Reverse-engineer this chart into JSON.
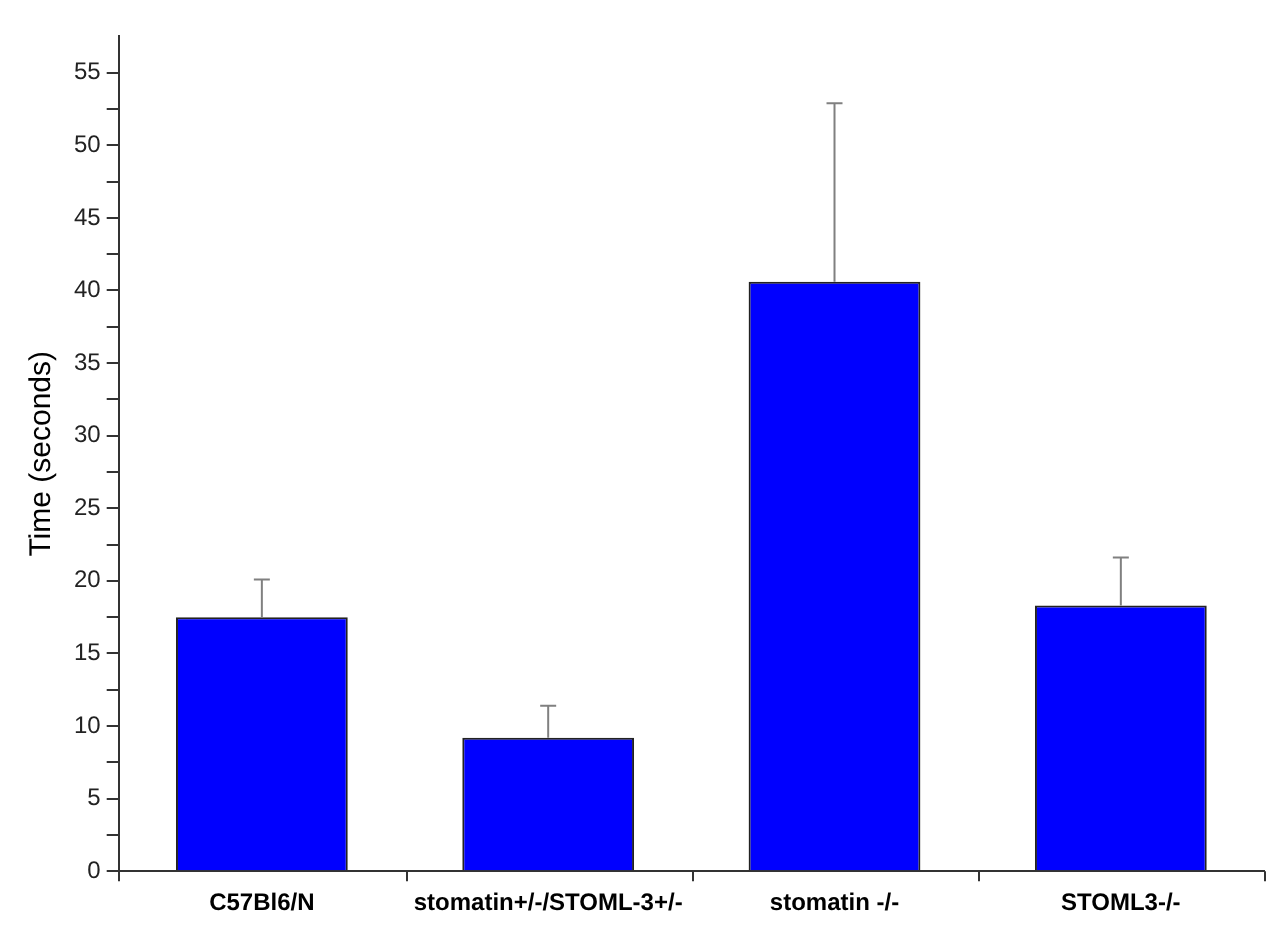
{
  "chart_data": {
    "type": "bar",
    "ylabel": "Time (seconds)",
    "categories": [
      "C57Bl6/N",
      "stomatin+/-/STOML-3+/-",
      "stomatin -/-",
      "STOML3-/-"
    ],
    "values": [
      17.5,
      9.2,
      40.6,
      18.3
    ],
    "errors": [
      [
        17.5,
        20.1
      ],
      [
        9.2,
        11.4
      ],
      [
        40.6,
        52.9
      ],
      [
        18.3,
        21.6
      ]
    ],
    "color": "#0000ff",
    "ylim": [
      0,
      57.5
    ],
    "yticks": [
      0,
      {
        "value": 2.5,
        "label": null
      },
      5,
      {
        "value": 7.5,
        "label": null
      },
      10,
      {
        "value": 12.5,
        "label": null
      },
      15,
      {
        "value": 17.5,
        "label": null
      },
      20,
      {
        "value": 22.5,
        "label": null
      },
      25,
      {
        "value": 27.5,
        "label": null
      },
      30,
      {
        "value": 32.5,
        "label": null
      },
      35,
      {
        "value": 37.5,
        "label": null
      },
      40,
      {
        "value": 42.5,
        "label": null
      },
      45,
      {
        "value": 47.5,
        "label": null
      },
      50,
      {
        "value": 52.5,
        "label": null
      },
      55
    ],
    "grid": false,
    "legend": false
  }
}
